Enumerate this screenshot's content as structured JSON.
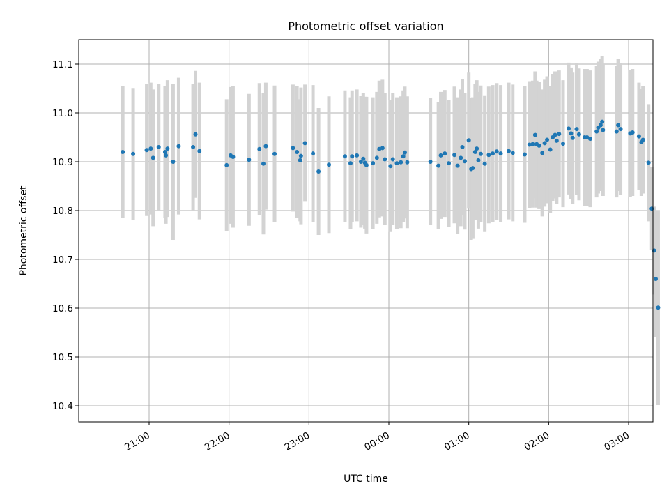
{
  "chart_data": {
    "type": "scatter",
    "title": "Photometric offset variation",
    "xlabel": "UTC time",
    "ylabel": "Photometric offset",
    "x_unit": "UTC hours (20:00 on first day = 20, 03:00 next day = 27)",
    "xlim": [
      20.33,
      27.32
    ],
    "ylim": [
      10.366,
      11.154
    ],
    "x_ticks": [
      {
        "value": 21,
        "label": "21:00"
      },
      {
        "value": 22,
        "label": "22:00"
      },
      {
        "value": 23,
        "label": "23:00"
      },
      {
        "value": 24,
        "label": "00:00"
      },
      {
        "value": 25,
        "label": "01:00"
      },
      {
        "value": 26,
        "label": "02:00"
      },
      {
        "value": 27,
        "label": "03:00"
      }
    ],
    "y_ticks": [
      {
        "value": 10.4,
        "label": "10.4"
      },
      {
        "value": 10.5,
        "label": "10.5"
      },
      {
        "value": 10.6,
        "label": "10.6"
      },
      {
        "value": 10.7,
        "label": "10.7"
      },
      {
        "value": 10.8,
        "label": "10.8"
      },
      {
        "value": 10.9,
        "label": "10.9"
      },
      {
        "value": 11.0,
        "label": "11.0"
      },
      {
        "value": 11.1,
        "label": "11.1"
      }
    ],
    "grid": true,
    "colors": {
      "point": "#1f77b4",
      "errorbar": "#d3d3d3"
    },
    "series": [
      {
        "points": [
          [
            20.67,
            10.92,
            0.135
          ],
          [
            20.8,
            10.916,
            0.135
          ],
          [
            20.97,
            10.924,
            0.135
          ],
          [
            21.02,
            10.927,
            0.135
          ],
          [
            21.05,
            10.908,
            0.14
          ],
          [
            21.12,
            10.93,
            0.13
          ],
          [
            21.2,
            10.92,
            0.135
          ],
          [
            21.21,
            10.913,
            0.14
          ],
          [
            21.23,
            10.927,
            0.14
          ],
          [
            21.3,
            10.9,
            0.16
          ],
          [
            21.37,
            10.932,
            0.14
          ],
          [
            21.55,
            10.93,
            0.13
          ],
          [
            21.58,
            10.956,
            0.13
          ],
          [
            21.63,
            10.922,
            0.14
          ],
          [
            21.97,
            10.893,
            0.135
          ],
          [
            22.02,
            10.913,
            0.14
          ],
          [
            22.05,
            10.91,
            0.145
          ],
          [
            22.25,
            10.904,
            0.135
          ],
          [
            22.38,
            10.926,
            0.135
          ],
          [
            22.43,
            10.896,
            0.145
          ],
          [
            22.46,
            10.932,
            0.13
          ],
          [
            22.57,
            10.916,
            0.14
          ],
          [
            22.8,
            10.928,
            0.13
          ],
          [
            22.85,
            10.92,
            0.135
          ],
          [
            22.89,
            10.903,
            0.125
          ],
          [
            22.9,
            10.912,
            0.14
          ],
          [
            22.95,
            10.938,
            0.12
          ],
          [
            23.05,
            10.917,
            0.14
          ],
          [
            23.12,
            10.88,
            0.13
          ],
          [
            23.25,
            10.894,
            0.14
          ],
          [
            23.45,
            10.911,
            0.135
          ],
          [
            23.52,
            10.897,
            0.135
          ],
          [
            23.54,
            10.911,
            0.135
          ],
          [
            23.6,
            10.913,
            0.135
          ],
          [
            23.65,
            10.9,
            0.135
          ],
          [
            23.68,
            10.906,
            0.135
          ],
          [
            23.7,
            10.898,
            0.135
          ],
          [
            23.72,
            10.893,
            0.14
          ],
          [
            23.8,
            10.897,
            0.135
          ],
          [
            23.85,
            10.908,
            0.135
          ],
          [
            23.88,
            10.926,
            0.14
          ],
          [
            23.92,
            10.928,
            0.14
          ],
          [
            23.95,
            10.905,
            0.135
          ],
          [
            24.02,
            10.891,
            0.135
          ],
          [
            24.05,
            10.905,
            0.135
          ],
          [
            24.1,
            10.897,
            0.135
          ],
          [
            24.15,
            10.899,
            0.135
          ],
          [
            24.18,
            10.911,
            0.135
          ],
          [
            24.2,
            10.919,
            0.135
          ],
          [
            24.23,
            10.899,
            0.135
          ],
          [
            24.52,
            10.9,
            0.13
          ],
          [
            24.62,
            10.892,
            0.13
          ],
          [
            24.65,
            10.913,
            0.13
          ],
          [
            24.7,
            10.917,
            0.13
          ],
          [
            24.75,
            10.897,
            0.13
          ],
          [
            24.82,
            10.914,
            0.14
          ],
          [
            24.86,
            10.892,
            0.14
          ],
          [
            24.9,
            10.908,
            0.14
          ],
          [
            24.92,
            10.93,
            0.14
          ],
          [
            24.95,
            10.901,
            0.14
          ],
          [
            25.0,
            10.944,
            0.14
          ],
          [
            25.03,
            10.885,
            0.145
          ],
          [
            25.05,
            10.887,
            0.145
          ],
          [
            25.08,
            10.92,
            0.14
          ],
          [
            25.1,
            10.927,
            0.14
          ],
          [
            25.12,
            10.903,
            0.14
          ],
          [
            25.15,
            10.916,
            0.14
          ],
          [
            25.2,
            10.896,
            0.14
          ],
          [
            25.25,
            10.914,
            0.14
          ],
          [
            25.3,
            10.917,
            0.14
          ],
          [
            25.35,
            10.921,
            0.14
          ],
          [
            25.4,
            10.917,
            0.14
          ],
          [
            25.5,
            10.922,
            0.14
          ],
          [
            25.55,
            10.918,
            0.14
          ],
          [
            25.7,
            10.915,
            0.14
          ],
          [
            25.76,
            10.935,
            0.13
          ],
          [
            25.8,
            10.936,
            0.13
          ],
          [
            25.83,
            10.955,
            0.13
          ],
          [
            25.85,
            10.936,
            0.13
          ],
          [
            25.88,
            10.933,
            0.13
          ],
          [
            25.92,
            10.918,
            0.13
          ],
          [
            25.95,
            10.938,
            0.13
          ],
          [
            25.98,
            10.945,
            0.13
          ],
          [
            26.02,
            10.925,
            0.13
          ],
          [
            26.05,
            10.95,
            0.13
          ],
          [
            26.08,
            10.955,
            0.13
          ],
          [
            26.1,
            10.943,
            0.13
          ],
          [
            26.13,
            10.957,
            0.13
          ],
          [
            26.18,
            10.937,
            0.13
          ],
          [
            26.25,
            10.968,
            0.135
          ],
          [
            26.28,
            10.958,
            0.135
          ],
          [
            26.3,
            10.949,
            0.135
          ],
          [
            26.35,
            10.967,
            0.135
          ],
          [
            26.38,
            10.956,
            0.135
          ],
          [
            26.45,
            10.95,
            0.14
          ],
          [
            26.48,
            10.95,
            0.14
          ],
          [
            26.52,
            10.947,
            0.14
          ],
          [
            26.6,
            10.962,
            0.135
          ],
          [
            26.62,
            10.97,
            0.135
          ],
          [
            26.65,
            10.975,
            0.135
          ],
          [
            26.67,
            10.982,
            0.135
          ],
          [
            26.68,
            10.965,
            0.135
          ],
          [
            26.85,
            10.962,
            0.135
          ],
          [
            26.87,
            10.975,
            0.135
          ],
          [
            26.9,
            10.967,
            0.135
          ],
          [
            27.02,
            10.958,
            0.13
          ],
          [
            27.05,
            10.96,
            0.13
          ],
          [
            27.13,
            10.952,
            0.11
          ],
          [
            27.16,
            10.94,
            0.11
          ],
          [
            27.18,
            10.945,
            0.11
          ],
          [
            27.25,
            10.898,
            0.12
          ],
          [
            27.29,
            10.804,
            0.085
          ],
          [
            27.32,
            10.718,
            0.09
          ],
          [
            27.34,
            10.66,
            0.12
          ],
          [
            27.37,
            10.601,
            0.2
          ]
        ]
      }
    ]
  }
}
